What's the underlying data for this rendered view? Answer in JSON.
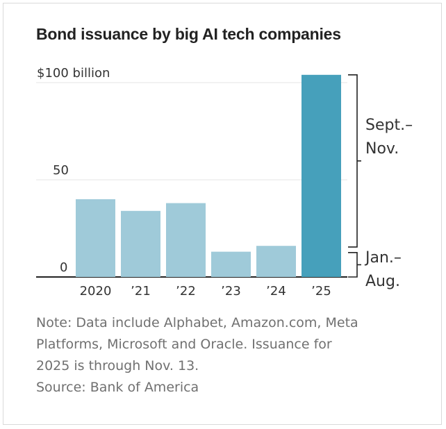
{
  "chart_data": {
    "type": "bar",
    "title": "Bond issuance by big AI tech companies",
    "categories": [
      "2020",
      "’21",
      "’22",
      "’23",
      "’24",
      "’25"
    ],
    "values": [
      40,
      34,
      38,
      13,
      16,
      104
    ],
    "stacked_2025": [
      {
        "name": "Jan.– Aug.",
        "value": 14
      },
      {
        "name": "Sept.– Nov.",
        "value": 90
      }
    ],
    "y_ticks": [
      {
        "value": 100,
        "label": "$100 billion"
      },
      {
        "value": 50,
        "label": "50"
      },
      {
        "value": 0,
        "label": "0"
      }
    ],
    "ylim": [
      0,
      104
    ],
    "annotations": {
      "upper": [
        "Sept.–",
        "Nov."
      ],
      "lower": [
        "Jan.–",
        "Aug."
      ]
    },
    "colors": {
      "bar": "#9fcad9",
      "highlight": "#46a0bb",
      "grid": "#e4e4e4",
      "baseline": "#222222"
    }
  },
  "note_lines": [
    "Note: Data include Alphabet, Amazon.com, Meta",
    "Platforms, Microsoft and Oracle. Issuance for",
    "2025 is through Nov. 13.",
    "Source: Bank of America"
  ]
}
